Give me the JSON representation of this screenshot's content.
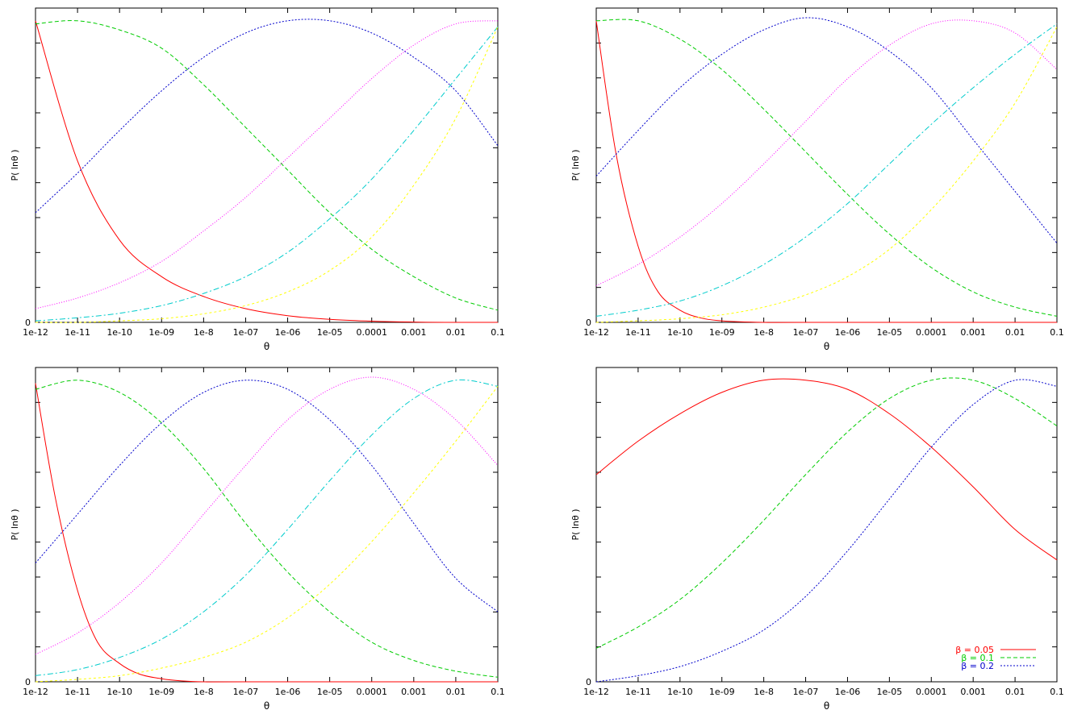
{
  "chart_data": [
    {
      "type": "line",
      "xscale": "log",
      "xlim": [
        1e-12,
        0.1
      ],
      "ylim": [
        0,
        1
      ],
      "xlabel": "θ",
      "ylabel": "P( lnθ )",
      "xticks": [
        "1e-12",
        "1e-11",
        "1e-10",
        "1e-09",
        "1e-8",
        "1e-07",
        "1e-06",
        "1e-05",
        "0.0001",
        "0.001",
        "0.01",
        "0.1"
      ],
      "yticks": [
        "0"
      ],
      "grid": false,
      "series": [
        {
          "color": "#ff0000",
          "x": [
            1e-12,
            1e-11,
            1e-10,
            1e-09,
            1e-08,
            1e-07,
            1e-06,
            1e-05,
            0.0001,
            0.001,
            0.01,
            0.1
          ],
          "y": [
            0.99,
            0.53,
            0.27,
            0.15,
            0.085,
            0.045,
            0.022,
            0.01,
            0.004,
            0.001,
            0.0,
            0.0
          ]
        },
        {
          "color": "#00cc00",
          "x": [
            1e-12,
            1e-11,
            1e-10,
            1e-09,
            1e-08,
            1e-07,
            1e-06,
            1e-05,
            0.0001,
            0.001,
            0.01,
            0.1
          ],
          "y": [
            0.98,
            0.99,
            0.96,
            0.9,
            0.78,
            0.64,
            0.5,
            0.36,
            0.24,
            0.15,
            0.08,
            0.04
          ]
        },
        {
          "color": "#0000cc",
          "x": [
            1e-12,
            1e-11,
            1e-10,
            1e-09,
            1e-08,
            1e-07,
            1e-06,
            1e-05,
            0.0001,
            0.001,
            0.01,
            0.1
          ],
          "y": [
            0.36,
            0.49,
            0.63,
            0.76,
            0.87,
            0.95,
            0.99,
            0.99,
            0.95,
            0.87,
            0.76,
            0.58
          ]
        },
        {
          "color": "#ff00ff",
          "x": [
            1e-12,
            1e-11,
            1e-10,
            1e-09,
            1e-08,
            1e-07,
            1e-06,
            1e-05,
            0.0001,
            0.001,
            0.01,
            0.1
          ],
          "y": [
            0.045,
            0.08,
            0.13,
            0.2,
            0.3,
            0.41,
            0.54,
            0.67,
            0.8,
            0.91,
            0.98,
            0.99
          ]
        },
        {
          "color": "#00cccc",
          "x": [
            1e-12,
            1e-11,
            1e-10,
            1e-09,
            1e-08,
            1e-07,
            1e-06,
            1e-05,
            0.0001,
            0.001,
            0.01,
            0.1
          ],
          "y": [
            0.005,
            0.015,
            0.03,
            0.055,
            0.095,
            0.15,
            0.23,
            0.34,
            0.47,
            0.63,
            0.8,
            0.97
          ]
        },
        {
          "color": "#ffff00",
          "x": [
            1e-12,
            1e-11,
            1e-10,
            1e-09,
            1e-08,
            1e-07,
            1e-06,
            1e-05,
            0.0001,
            0.001,
            0.01,
            0.1
          ],
          "y": [
            0.0,
            0.0,
            0.005,
            0.012,
            0.028,
            0.055,
            0.1,
            0.17,
            0.28,
            0.45,
            0.67,
            0.97
          ]
        }
      ]
    },
    {
      "type": "line",
      "xscale": "log",
      "xlim": [
        1e-12,
        0.1
      ],
      "ylim": [
        0,
        1
      ],
      "xlabel": "θ",
      "ylabel": "P( lnθ )",
      "xticks": [
        "1e-12",
        "1e-11",
        "1e-10",
        "1e-09",
        "1e-8",
        "1e-07",
        "1e-06",
        "1e-05",
        "0.0001",
        "0.001",
        "0.01",
        "0.1"
      ],
      "yticks": [
        "0"
      ],
      "grid": false,
      "series": [
        {
          "color": "#ff0000",
          "x": [
            1e-12,
            3e-12,
            1e-11,
            3e-11,
            1e-10,
            3e-10,
            1e-09,
            1e-08,
            1e-07,
            0.1
          ],
          "y": [
            0.99,
            0.55,
            0.25,
            0.1,
            0.04,
            0.015,
            0.005,
            0.0,
            0.0,
            0.0
          ]
        },
        {
          "color": "#00cc00",
          "x": [
            1e-12,
            1e-11,
            1e-10,
            1e-09,
            1e-08,
            1e-07,
            1e-06,
            1e-05,
            0.0001,
            0.001,
            0.01,
            0.1
          ],
          "y": [
            0.99,
            0.99,
            0.93,
            0.83,
            0.7,
            0.56,
            0.42,
            0.29,
            0.18,
            0.1,
            0.05,
            0.02
          ]
        },
        {
          "color": "#0000cc",
          "x": [
            1e-12,
            1e-11,
            1e-10,
            1e-09,
            1e-08,
            1e-07,
            1e-06,
            1e-05,
            0.0001,
            0.001,
            0.01,
            0.1
          ],
          "y": [
            0.48,
            0.63,
            0.77,
            0.88,
            0.96,
            1.0,
            0.97,
            0.89,
            0.77,
            0.6,
            0.43,
            0.26
          ]
        },
        {
          "color": "#ff00ff",
          "x": [
            1e-12,
            1e-11,
            1e-10,
            1e-09,
            1e-08,
            1e-07,
            1e-06,
            1e-05,
            0.0001,
            0.001,
            0.01,
            0.1
          ],
          "y": [
            0.12,
            0.19,
            0.28,
            0.39,
            0.52,
            0.66,
            0.8,
            0.91,
            0.98,
            0.99,
            0.95,
            0.83
          ]
        },
        {
          "color": "#00cccc",
          "x": [
            1e-12,
            1e-11,
            1e-10,
            1e-09,
            1e-08,
            1e-07,
            1e-06,
            1e-05,
            0.0001,
            0.001,
            0.01,
            0.1
          ],
          "y": [
            0.02,
            0.04,
            0.07,
            0.12,
            0.19,
            0.28,
            0.39,
            0.52,
            0.65,
            0.77,
            0.88,
            0.98
          ]
        },
        {
          "color": "#ffff00",
          "x": [
            1e-12,
            1e-11,
            1e-10,
            1e-09,
            1e-08,
            1e-07,
            1e-06,
            1e-05,
            0.0001,
            0.001,
            0.01,
            0.1
          ],
          "y": [
            0.0,
            0.005,
            0.012,
            0.025,
            0.05,
            0.09,
            0.15,
            0.24,
            0.37,
            0.53,
            0.72,
            0.97
          ]
        }
      ]
    },
    {
      "type": "line",
      "xscale": "log",
      "xlim": [
        1e-12,
        0.1
      ],
      "ylim": [
        0,
        1
      ],
      "xlabel": "θ",
      "ylabel": "P( lnθ )",
      "xticks": [
        "1e-12",
        "1e-11",
        "1e-10",
        "1e-09",
        "1e-8",
        "1e-07",
        "1e-06",
        "1e-05",
        "0.0001",
        "0.001",
        "0.01",
        "0.1"
      ],
      "yticks": [
        "0"
      ],
      "grid": false,
      "series": [
        {
          "color": "#ff0000",
          "x": [
            1e-12,
            3e-12,
            1e-11,
            3e-11,
            1e-10,
            3e-10,
            1e-09,
            3e-09,
            1e-08,
            1e-07,
            0.1
          ],
          "y": [
            0.98,
            0.6,
            0.3,
            0.13,
            0.06,
            0.025,
            0.01,
            0.003,
            0.0,
            0.0,
            0.0
          ]
        },
        {
          "color": "#00cc00",
          "x": [
            1e-12,
            1e-11,
            1e-10,
            1e-09,
            1e-08,
            1e-07,
            1e-06,
            1e-05,
            0.0001,
            0.001,
            0.01,
            0.1
          ],
          "y": [
            0.96,
            0.99,
            0.95,
            0.85,
            0.7,
            0.52,
            0.36,
            0.23,
            0.13,
            0.07,
            0.035,
            0.015
          ]
        },
        {
          "color": "#0000cc",
          "x": [
            1e-12,
            1e-11,
            1e-10,
            1e-09,
            1e-08,
            1e-07,
            1e-06,
            1e-05,
            0.0001,
            0.001,
            0.01,
            0.1
          ],
          "y": [
            0.39,
            0.55,
            0.71,
            0.85,
            0.95,
            0.99,
            0.96,
            0.86,
            0.71,
            0.52,
            0.34,
            0.23
          ]
        },
        {
          "color": "#ff00ff",
          "x": [
            1e-12,
            1e-11,
            1e-10,
            1e-09,
            1e-08,
            1e-07,
            1e-06,
            1e-05,
            0.0001,
            0.001,
            0.01,
            0.1
          ],
          "y": [
            0.09,
            0.16,
            0.26,
            0.39,
            0.55,
            0.71,
            0.86,
            0.96,
            1.0,
            0.96,
            0.86,
            0.71
          ]
        },
        {
          "color": "#00cccc",
          "x": [
            1e-12,
            1e-11,
            1e-10,
            1e-09,
            1e-08,
            1e-07,
            1e-06,
            1e-05,
            0.0001,
            0.001,
            0.01,
            0.1
          ],
          "y": [
            0.02,
            0.04,
            0.08,
            0.14,
            0.23,
            0.35,
            0.5,
            0.66,
            0.81,
            0.93,
            0.99,
            0.97
          ]
        },
        {
          "color": "#ffff00",
          "x": [
            1e-12,
            1e-11,
            1e-10,
            1e-09,
            1e-08,
            1e-07,
            1e-06,
            1e-05,
            0.0001,
            0.001,
            0.01,
            0.1
          ],
          "y": [
            0.0,
            0.008,
            0.02,
            0.045,
            0.08,
            0.13,
            0.21,
            0.32,
            0.46,
            0.62,
            0.79,
            0.97
          ]
        }
      ]
    },
    {
      "type": "line",
      "xscale": "log",
      "xlim": [
        1e-12,
        0.1
      ],
      "ylim": [
        0,
        1
      ],
      "xlabel": "θ",
      "ylabel": "P( lnθ )",
      "xticks": [
        "1e-12",
        "1e-11",
        "1e-10",
        "1e-09",
        "1e-8",
        "1e-07",
        "1e-06",
        "1e-05",
        "0.0001",
        "0.001",
        "0.01",
        "0.1"
      ],
      "yticks": [
        "0"
      ],
      "grid": false,
      "legend": "bottom-right",
      "series": [
        {
          "name": "β = 0.05",
          "color": "#ff0000",
          "x": [
            1e-12,
            1e-11,
            1e-10,
            1e-09,
            1e-08,
            1e-07,
            1e-06,
            1e-05,
            0.0001,
            0.001,
            0.01,
            0.1
          ],
          "y": [
            0.68,
            0.79,
            0.88,
            0.95,
            0.99,
            0.99,
            0.96,
            0.88,
            0.77,
            0.64,
            0.5,
            0.4
          ]
        },
        {
          "name": "β = 0.1",
          "color": "#00cc00",
          "x": [
            1e-12,
            1e-11,
            1e-10,
            1e-09,
            1e-08,
            1e-07,
            1e-06,
            1e-05,
            0.0001,
            0.001,
            0.01,
            0.1
          ],
          "y": [
            0.11,
            0.18,
            0.27,
            0.39,
            0.53,
            0.68,
            0.82,
            0.93,
            0.99,
            0.99,
            0.93,
            0.84
          ]
        },
        {
          "name": "β = 0.2",
          "color": "#0000cc",
          "x": [
            1e-12,
            1e-11,
            1e-10,
            1e-09,
            1e-08,
            1e-07,
            1e-06,
            1e-05,
            0.0001,
            0.001,
            0.01,
            0.1
          ],
          "y": [
            0.0,
            0.02,
            0.05,
            0.1,
            0.17,
            0.28,
            0.43,
            0.6,
            0.77,
            0.91,
            0.99,
            0.97
          ]
        }
      ]
    }
  ]
}
